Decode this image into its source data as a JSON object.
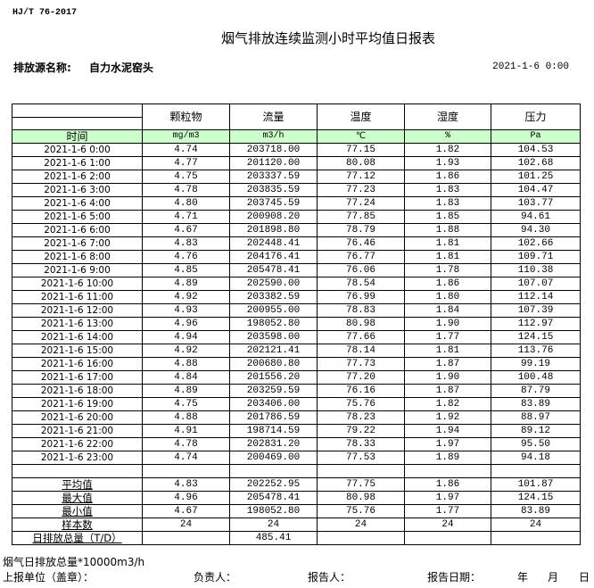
{
  "standard": "HJ/T  76-2017",
  "title": "烟气排放连续监测小时平均值日报表",
  "source_label": "排放源名称:",
  "source_name": "自力水泥窑头",
  "report_date": "2021-1-6 0:00",
  "columns": [
    "颗粒物",
    "流量",
    "温度",
    "湿度",
    "压力"
  ],
  "time_label": "时间",
  "units": [
    "mg/m3",
    "m3/h",
    "℃",
    "%",
    "Pa"
  ],
  "rows": [
    [
      "2021-1-6 0:00",
      "4.74",
      "203718.00",
      "77.15",
      "1.82",
      "104.53"
    ],
    [
      "2021-1-6 1:00",
      "4.77",
      "201120.00",
      "80.08",
      "1.93",
      "102.68"
    ],
    [
      "2021-1-6 2:00",
      "4.75",
      "203337.59",
      "77.12",
      "1.86",
      "101.25"
    ],
    [
      "2021-1-6 3:00",
      "4.78",
      "203835.59",
      "77.23",
      "1.83",
      "104.47"
    ],
    [
      "2021-1-6 4:00",
      "4.80",
      "203745.59",
      "77.24",
      "1.83",
      "103.77"
    ],
    [
      "2021-1-6 5:00",
      "4.71",
      "200908.20",
      "77.85",
      "1.85",
      "94.61"
    ],
    [
      "2021-1-6 6:00",
      "4.67",
      "201898.80",
      "78.79",
      "1.88",
      "94.30"
    ],
    [
      "2021-1-6 7:00",
      "4.83",
      "202448.41",
      "76.46",
      "1.81",
      "102.66"
    ],
    [
      "2021-1-6 8:00",
      "4.76",
      "204176.41",
      "76.77",
      "1.81",
      "109.71"
    ],
    [
      "2021-1-6 9:00",
      "4.85",
      "205478.41",
      "76.06",
      "1.78",
      "110.38"
    ],
    [
      "2021-1-6 10:00",
      "4.89",
      "202590.00",
      "78.54",
      "1.86",
      "107.07"
    ],
    [
      "2021-1-6 11:00",
      "4.92",
      "203382.59",
      "76.99",
      "1.80",
      "112.14"
    ],
    [
      "2021-1-6 12:00",
      "4.93",
      "200955.00",
      "78.83",
      "1.84",
      "107.39"
    ],
    [
      "2021-1-6 13:00",
      "4.96",
      "198052.80",
      "80.98",
      "1.90",
      "112.97"
    ],
    [
      "2021-1-6 14:00",
      "4.94",
      "203598.00",
      "77.66",
      "1.77",
      "124.15"
    ],
    [
      "2021-1-6 15:00",
      "4.92",
      "202121.41",
      "78.14",
      "1.81",
      "113.76"
    ],
    [
      "2021-1-6 16:00",
      "4.88",
      "200680.80",
      "77.73",
      "1.87",
      "99.19"
    ],
    [
      "2021-1-6 17:00",
      "4.84",
      "201556.20",
      "77.20",
      "1.90",
      "100.48"
    ],
    [
      "2021-1-6 18:00",
      "4.89",
      "203259.59",
      "76.16",
      "1.87",
      "87.79"
    ],
    [
      "2021-1-6 19:00",
      "4.75",
      "203406.00",
      "75.76",
      "1.82",
      "83.89"
    ],
    [
      "2021-1-6 20:00",
      "4.88",
      "201786.59",
      "78.23",
      "1.92",
      "88.97"
    ],
    [
      "2021-1-6 21:00",
      "4.91",
      "198714.59",
      "79.22",
      "1.94",
      "89.12"
    ],
    [
      "2021-1-6 22:00",
      "4.78",
      "202831.20",
      "78.33",
      "1.97",
      "95.50"
    ],
    [
      "2021-1-6 23:00",
      "4.74",
      "200469.00",
      "77.53",
      "1.89",
      "94.18"
    ]
  ],
  "summary": [
    [
      "平均值",
      "4.83",
      "202252.95",
      "77.75",
      "1.86",
      "101.87"
    ],
    [
      "最大值",
      "4.96",
      "205478.41",
      "80.98",
      "1.97",
      "124.15"
    ],
    [
      "最小值",
      "4.67",
      "198052.80",
      "75.76",
      "1.77",
      "83.89"
    ],
    [
      "样本数",
      "24",
      "24",
      "24",
      "24",
      "24"
    ],
    [
      "日排放总量（T/D）",
      "",
      "485.41",
      "",
      "",
      ""
    ]
  ],
  "footer": {
    "note": "烟气日排放总量*10000m3/h",
    "unit_label": "上报单位（盖章）：",
    "responsible_label": "负责人：",
    "reporter_label": "报告人：",
    "report_date_label": "报告日期：",
    "year": "年",
    "month": "月",
    "day": "日"
  },
  "colors": {
    "units_row_bg": "#ccffcc"
  }
}
